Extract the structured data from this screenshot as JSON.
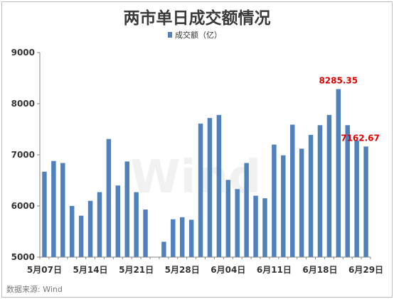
{
  "source_text": "数据来源: Wind",
  "watermark_text": "Wind",
  "chart_data": {
    "type": "bar",
    "title": "两市单日成交额情况",
    "legend_position": "top-center",
    "grid": false,
    "ylim": [
      5000,
      9000
    ],
    "yticks": [
      5000,
      6000,
      7000,
      8000,
      9000
    ],
    "series": [
      {
        "name": "成交额（亿）",
        "color": "#4f81bd",
        "values": [
          6670,
          6880,
          6840,
          6000,
          5810,
          6100,
          6270,
          7310,
          6400,
          6870,
          6270,
          5930,
          null,
          5300,
          5740,
          5780,
          5730,
          7610,
          7720,
          7780,
          6510,
          6330,
          6840,
          6200,
          6150,
          7200,
          6990,
          7590,
          7120,
          7390,
          7580,
          7780,
          8285.35,
          7580,
          7280,
          7162.67
        ]
      }
    ],
    "xtick_labels": [
      {
        "index": 0,
        "label": "5月07日"
      },
      {
        "index": 5,
        "label": "5月14日"
      },
      {
        "index": 10,
        "label": "5月21日"
      },
      {
        "index": 15,
        "label": "5月28日"
      },
      {
        "index": 20,
        "label": "6月04日"
      },
      {
        "index": 25,
        "label": "6月11日"
      },
      {
        "index": 30,
        "label": "6月18日"
      },
      {
        "index": 35,
        "label": "6月29日"
      }
    ],
    "data_labels": [
      {
        "index": 32,
        "label": "8285.35"
      },
      {
        "index": 35,
        "label": "7162.67"
      }
    ],
    "label_color": "#e00000"
  }
}
